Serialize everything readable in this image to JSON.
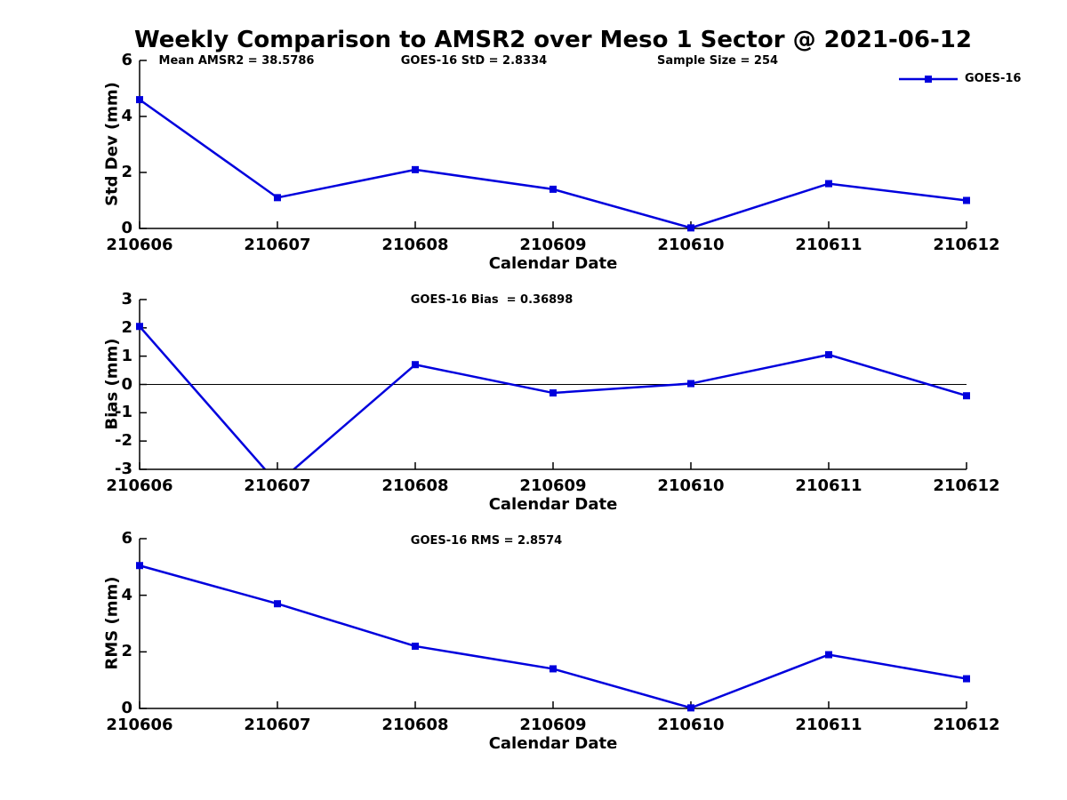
{
  "figure": {
    "title": "Weekly Comparison to AMSR2 over Meso 1 Sector @ 2021-06-12",
    "header_stats": [
      {
        "label": "Mean AMSR2 = 38.5786"
      },
      {
        "label": "GOES-16 StD = 2.8334"
      },
      {
        "label": "Sample Size = 254"
      }
    ]
  },
  "legend": {
    "label": "GOES-16",
    "color": "#0000dd",
    "position": "top-right",
    "marker": "square"
  },
  "chart_data": [
    {
      "type": "line",
      "categories": [
        "210606",
        "210607",
        "210608",
        "210609",
        "210610",
        "210611",
        "210612"
      ],
      "series": [
        {
          "name": "GOES-16",
          "color": "#0000dd",
          "marker": "square",
          "values": [
            4.6,
            1.1,
            2.1,
            1.4,
            0.02,
            1.6,
            1.0
          ]
        }
      ],
      "xlabel": "Calendar Date",
      "ylabel": "Std Dev (mm)",
      "ylim": [
        0,
        6
      ],
      "yticks": [
        0,
        2,
        4,
        6
      ],
      "grid": false,
      "zero_line": false
    },
    {
      "type": "line",
      "annotation": "GOES-16 Bias  = 0.36898",
      "categories": [
        "210606",
        "210607",
        "210608",
        "210609",
        "210610",
        "210611",
        "210612"
      ],
      "series": [
        {
          "name": "GOES-16",
          "color": "#0000dd",
          "marker": "square",
          "values": [
            2.05,
            -3.5,
            0.7,
            -0.3,
            0.03,
            1.05,
            -0.4
          ]
        }
      ],
      "xlabel": "Calendar Date",
      "ylabel": "Bias (mm)",
      "ylim": [
        -3,
        3
      ],
      "yticks": [
        -3,
        -2,
        -1,
        0,
        1,
        2,
        3
      ],
      "grid": false,
      "zero_line": true
    },
    {
      "type": "line",
      "annotation": "GOES-16 RMS = 2.8574",
      "categories": [
        "210606",
        "210607",
        "210608",
        "210609",
        "210610",
        "210611",
        "210612"
      ],
      "series": [
        {
          "name": "GOES-16",
          "color": "#0000dd",
          "marker": "square",
          "values": [
            5.05,
            3.7,
            2.2,
            1.4,
            0.02,
            1.9,
            1.05
          ]
        }
      ],
      "xlabel": "Calendar Date",
      "ylabel": "RMS (mm)",
      "ylim": [
        0,
        6
      ],
      "yticks": [
        0,
        2,
        4,
        6
      ],
      "grid": false,
      "zero_line": false
    }
  ]
}
